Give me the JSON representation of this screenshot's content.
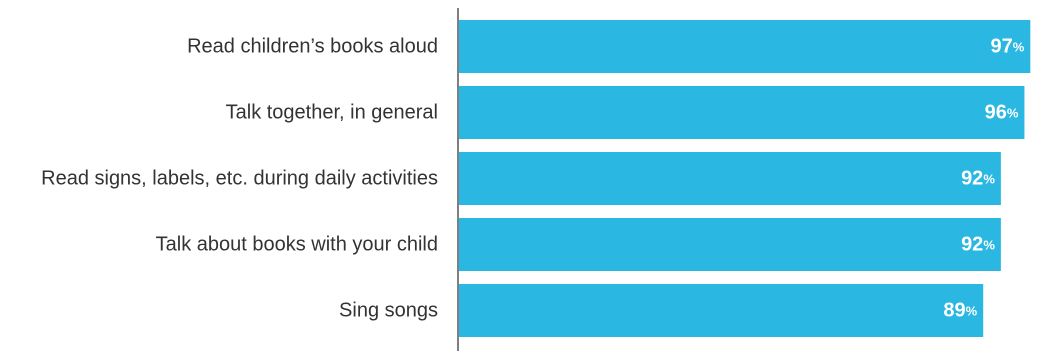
{
  "chart_data": {
    "type": "bar",
    "orientation": "horizontal",
    "categories": [
      "Read children’s books aloud",
      "Talk together, in general",
      "Read signs, labels, etc. during daily activities",
      "Talk about books with your child",
      "Sing songs"
    ],
    "values": [
      97,
      96,
      92,
      92,
      89
    ],
    "value_suffix": "%",
    "xlim": [
      0,
      100
    ],
    "grid": false,
    "legend": "none",
    "bar_color": "#2ab7e2"
  }
}
